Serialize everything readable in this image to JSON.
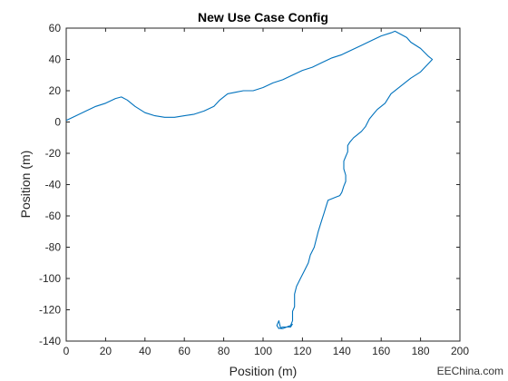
{
  "watermark": "EEChina.com",
  "chart_data": {
    "type": "line",
    "title": "New Use Case Config",
    "xlabel": "Position (m)",
    "ylabel": "Position (m)",
    "xlim": [
      0,
      200
    ],
    "ylim": [
      -140,
      60
    ],
    "xticks": [
      0,
      20,
      40,
      60,
      80,
      100,
      120,
      140,
      160,
      180,
      200
    ],
    "yticks": [
      -140,
      -120,
      -100,
      -80,
      -60,
      -40,
      -20,
      0,
      20,
      40,
      60
    ],
    "grid": false,
    "line_color": "#0072BD",
    "series": [
      {
        "x": [
          0,
          5,
          10,
          15,
          20,
          25,
          28,
          31,
          35,
          40,
          45,
          50,
          55,
          60,
          65,
          70,
          75,
          78,
          82,
          86,
          90,
          95,
          100,
          105,
          110,
          115,
          120,
          125,
          130,
          135,
          140,
          145,
          150,
          155,
          160,
          165,
          167,
          170,
          173,
          175,
          180,
          184,
          186,
          183,
          180,
          175,
          170,
          165,
          162,
          158,
          156,
          154,
          152,
          150,
          148,
          146,
          144,
          143,
          143,
          142,
          141,
          141,
          142,
          142,
          141,
          140,
          139,
          137,
          135,
          133,
          132,
          131,
          130,
          129,
          128,
          127,
          126,
          124,
          123,
          121,
          119,
          117,
          116,
          116,
          116,
          115,
          115,
          115,
          114,
          112,
          110,
          108,
          107,
          108,
          109,
          110,
          112,
          114,
          115
        ],
        "y": [
          1,
          4,
          7,
          10,
          12,
          15,
          16,
          14,
          10,
          6,
          4,
          3,
          3,
          4,
          5,
          7,
          10,
          14,
          18,
          19,
          20,
          20,
          22,
          25,
          27,
          30,
          33,
          35,
          38,
          41,
          43,
          46,
          49,
          52,
          55,
          57,
          58,
          56,
          54,
          51,
          47,
          42,
          40,
          36,
          32,
          28,
          23,
          18,
          12,
          8,
          5,
          2,
          -3,
          -6,
          -8,
          -10,
          -13,
          -15,
          -19,
          -22,
          -25,
          -30,
          -34,
          -38,
          -41,
          -45,
          -47,
          -48,
          -49,
          -50,
          -54,
          -58,
          -62,
          -66,
          -70,
          -75,
          -80,
          -85,
          -90,
          -95,
          -100,
          -105,
          -110,
          -114,
          -118,
          -121,
          -124,
          -127,
          -130,
          -131,
          -131,
          -132,
          -130,
          -127,
          -132,
          -132,
          -131,
          -131,
          -129
        ]
      }
    ]
  }
}
